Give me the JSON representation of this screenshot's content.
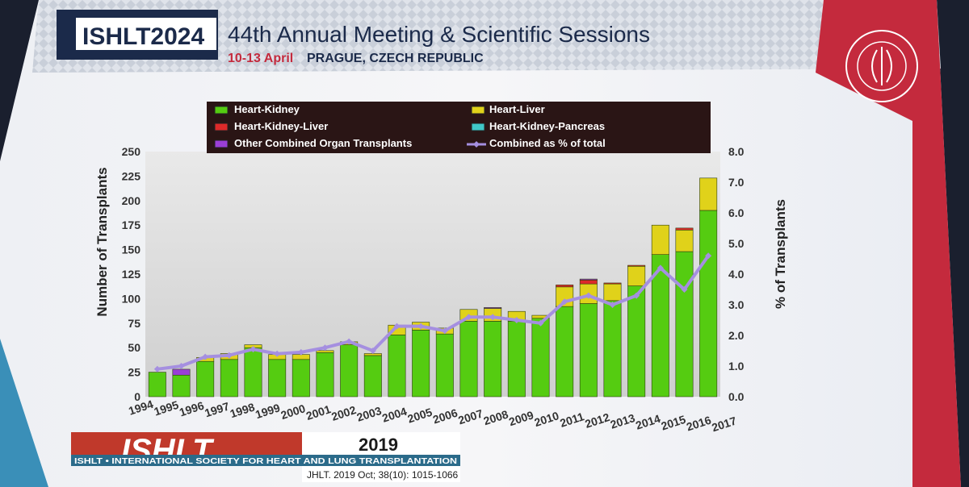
{
  "header": {
    "logo_text": "ISHLT2024",
    "meeting_title": "44th Annual Meeting & Scientific Sessions",
    "dates": "10-13 April",
    "location": "PRAGUE, CZECH REPUBLIC",
    "society_seal": "The International Society for Heart & Lung Transplantation"
  },
  "footer": {
    "logo_text": "ISHLT",
    "year": "2019",
    "society": "ISHLT • INTERNATIONAL SOCIETY FOR HEART AND LUNG TRANSPLANTATION",
    "citation": "JHLT. 2019 Oct; 38(10): 1015-1066"
  },
  "colors": {
    "heart_kidney": "#55cc11",
    "heart_liver": "#e0d21a",
    "heart_kidney_liver": "#dd2a2a",
    "heart_kidney_pancreas": "#40c8c8",
    "other": "#9a3fd6",
    "line": "#a58fe0"
  },
  "chart_data": {
    "type": "bar",
    "stacked": true,
    "title": "",
    "ylabel": "Number of Transplants",
    "y2label": "% of Transplants",
    "ylim": [
      0,
      250
    ],
    "y2lim": [
      0,
      8
    ],
    "yticks": [
      "0",
      "25",
      "50",
      "75",
      "100",
      "125",
      "150",
      "175",
      "200",
      "225",
      "250"
    ],
    "y2ticks": [
      "0.0",
      "1.0",
      "2.0",
      "3.0",
      "4.0",
      "5.0",
      "6.0",
      "7.0",
      "8.0"
    ],
    "categories": [
      "1994",
      "1995",
      "1996",
      "1997",
      "1998",
      "1999",
      "2000",
      "2001",
      "2002",
      "2003",
      "2004",
      "2005",
      "2006",
      "2007",
      "2008",
      "2009",
      "2010",
      "2011",
      "2012",
      "2013",
      "2014",
      "2015",
      "2016",
      "2017"
    ],
    "series": [
      {
        "name": "Heart-Kidney",
        "key": "heart_kidney",
        "values": [
          25,
          22,
          36,
          38,
          50,
          38,
          38,
          45,
          53,
          42,
          63,
          68,
          64,
          77,
          77,
          77,
          80,
          92,
          95,
          98,
          113,
          145,
          148,
          190
        ]
      },
      {
        "name": "Heart-Liver",
        "key": "heart_liver",
        "values": [
          0,
          0,
          4,
          6,
          3,
          5,
          5,
          2,
          3,
          2,
          10,
          8,
          6,
          12,
          13,
          10,
          3,
          20,
          20,
          17,
          20,
          30,
          22,
          33
        ]
      },
      {
        "name": "Heart-Kidney-Liver",
        "key": "heart_kidney_liver",
        "values": [
          0,
          0,
          0,
          0,
          0,
          0,
          0,
          0,
          0,
          0,
          0,
          0,
          0,
          0,
          0,
          0,
          0,
          2,
          4,
          1,
          1,
          0,
          2,
          0
        ]
      },
      {
        "name": "Heart-Kidney-Pancreas",
        "key": "heart_kidney_pancreas",
        "values": [
          0,
          0,
          0,
          0,
          0,
          0,
          0,
          0,
          0,
          0,
          0,
          0,
          0,
          0,
          0,
          0,
          0,
          0,
          0,
          0,
          0,
          0,
          0,
          0
        ]
      },
      {
        "name": "Other Combined Organ Transplants",
        "key": "other",
        "values": [
          0,
          6,
          0,
          0,
          0,
          0,
          0,
          0,
          0,
          0,
          0,
          0,
          0,
          0,
          1,
          0,
          0,
          0,
          1,
          0,
          0,
          0,
          0,
          0
        ]
      }
    ],
    "line_series": {
      "name": "Combined as % of total",
      "values": [
        0.9,
        1.0,
        1.3,
        1.35,
        1.55,
        1.4,
        1.45,
        1.6,
        1.8,
        1.5,
        2.3,
        2.3,
        2.15,
        2.6,
        2.6,
        2.5,
        2.4,
        3.1,
        3.3,
        3.0,
        3.3,
        4.2,
        3.5,
        4.6
      ]
    },
    "legend": {
      "position": "top",
      "items": [
        "Heart-Kidney",
        "Heart-Liver",
        "Heart-Kidney-Liver",
        "Heart-Kidney-Pancreas",
        "Other Combined Organ Transplants",
        "Combined as % of total"
      ]
    }
  }
}
